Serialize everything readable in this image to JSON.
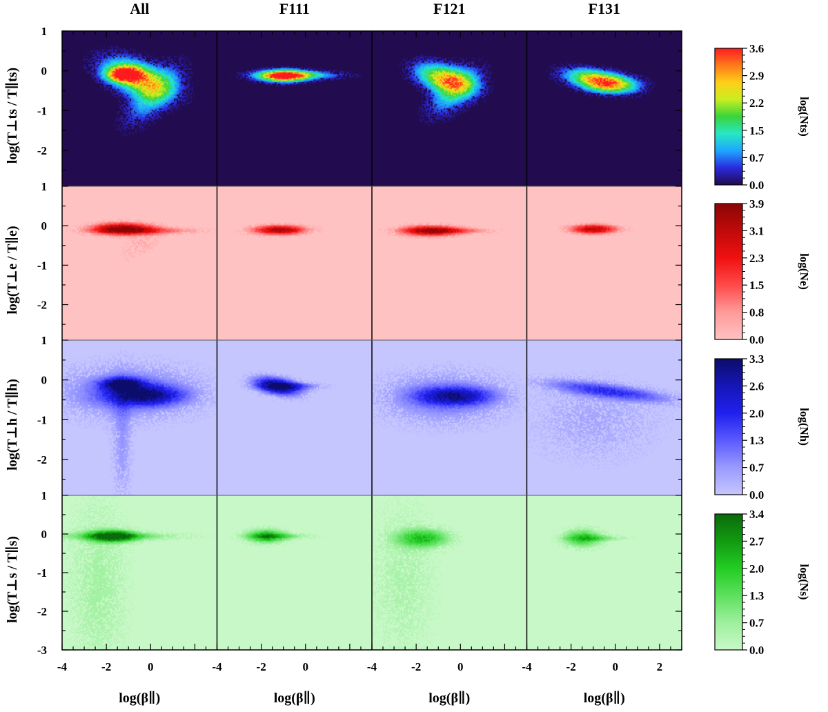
{
  "chart_data": {
    "type": "heatmap",
    "columns": [
      "All",
      "F111",
      "F121",
      "F131"
    ],
    "x_axis": {
      "label": "log(β∥)",
      "range": [
        -4,
        3
      ],
      "tick_labels": [
        [
          "-4",
          "-2",
          "0"
        ],
        [
          "-4",
          "-2",
          "0"
        ],
        [
          "-4",
          "-2",
          "0"
        ],
        [
          "-4",
          "-2",
          "0",
          "2"
        ]
      ]
    },
    "y_axis": {
      "range": [
        -3,
        1
      ]
    },
    "rows": [
      {
        "species": "ts",
        "ylabel": "log(T⊥ts / T∥ts)",
        "y_tick_labels": [
          "1",
          "0",
          "-1",
          "-2"
        ],
        "background": "#220b4e",
        "colorbar": {
          "label": "log(Nts)",
          "ticks": [
            "3.6",
            "2.9",
            "2.2",
            "1.5",
            "0.7",
            "0.0"
          ],
          "colors": [
            "#220b4e",
            "#2a2adf",
            "#1ea6ff",
            "#26e8c4",
            "#3ad43a",
            "#c8ee20",
            "#ffcf18",
            "#ff7a1a",
            "#ff1a20"
          ]
        },
        "panels": [
          {
            "blobs": [
              {
                "x": -0.6,
                "y": -0.18,
                "sx": 1.0,
                "sy": 0.28,
                "peak": 0.72,
                "rot": -10
              },
              {
                "x": -1.2,
                "y": -0.08,
                "sx": 0.5,
                "sy": 0.12,
                "peak": 1.0,
                "rot": 0
              },
              {
                "x": 0.1,
                "y": -0.6,
                "sx": 0.9,
                "sy": 0.32,
                "peak": 0.3,
                "rot": 25
              }
            ]
          },
          {
            "blobs": [
              {
                "x": -1.0,
                "y": -0.12,
                "sx": 0.7,
                "sy": 0.1,
                "peak": 1.0,
                "rot": 0
              },
              {
                "x": -0.4,
                "y": -0.1,
                "sx": 1.3,
                "sy": 0.07,
                "peak": 0.4,
                "rot": 0
              }
            ]
          },
          {
            "blobs": [
              {
                "x": -0.7,
                "y": -0.2,
                "sx": 0.85,
                "sy": 0.22,
                "peak": 0.75,
                "rot": -8
              },
              {
                "x": -0.3,
                "y": -0.5,
                "sx": 0.8,
                "sy": 0.3,
                "peak": 0.35,
                "rot": 20
              }
            ]
          },
          {
            "blobs": [
              {
                "x": -0.8,
                "y": -0.22,
                "sx": 0.95,
                "sy": 0.16,
                "peak": 0.75,
                "rot": -5
              },
              {
                "x": -0.2,
                "y": -0.35,
                "sx": 0.8,
                "sy": 0.14,
                "peak": 0.4,
                "rot": 0
              }
            ]
          }
        ]
      },
      {
        "species": "e",
        "ylabel": "log(T⊥e / T∥e)",
        "y_tick_labels": [
          "1",
          "0",
          "-1",
          "-2"
        ],
        "background": "#ffc2c2",
        "colorbar": {
          "label": "log(Ne)",
          "ticks": [
            "3.9",
            "3.1",
            "2.3",
            "1.5",
            "0.8",
            "0.0"
          ],
          "colors": [
            "#ffc2c2",
            "#ff9a9a",
            "#ff4a4a",
            "#f01010",
            "#c00a0a",
            "#8a0606"
          ]
        },
        "panels": [
          {
            "blobs": [
              {
                "x": -1.3,
                "y": -0.07,
                "sx": 0.9,
                "sy": 0.1,
                "peak": 1.0,
                "rot": 0
              },
              {
                "x": -0.2,
                "y": -0.12,
                "sx": 1.6,
                "sy": 0.06,
                "peak": 0.35,
                "rot": 0
              },
              {
                "x": -0.5,
                "y": -0.5,
                "sx": 0.6,
                "sy": 0.2,
                "peak": 0.12,
                "rot": 15
              }
            ]
          },
          {
            "blobs": [
              {
                "x": -1.2,
                "y": -0.1,
                "sx": 0.8,
                "sy": 0.08,
                "peak": 0.9,
                "rot": 0
              }
            ]
          },
          {
            "blobs": [
              {
                "x": -1.4,
                "y": -0.12,
                "sx": 0.9,
                "sy": 0.09,
                "peak": 0.85,
                "rot": 0
              },
              {
                "x": -0.4,
                "y": -0.12,
                "sx": 1.2,
                "sy": 0.05,
                "peak": 0.3,
                "rot": 0
              }
            ]
          },
          {
            "blobs": [
              {
                "x": -1.0,
                "y": -0.08,
                "sx": 0.7,
                "sy": 0.08,
                "peak": 0.85,
                "rot": 0
              }
            ]
          }
        ]
      },
      {
        "species": "h",
        "ylabel": "log(T⊥h / T∥h)",
        "y_tick_labels": [
          "1",
          "0",
          "-1",
          "-2"
        ],
        "background": "#c6c6ff",
        "colorbar": {
          "label": "log(Nh)",
          "ticks": [
            "3.3",
            "2.6",
            "2.0",
            "1.3",
            "0.7",
            "0.0"
          ],
          "colors": [
            "#c6c6ff",
            "#9a9aff",
            "#5a5aff",
            "#2020ee",
            "#1616b8",
            "#0c0c6a"
          ]
        },
        "panels": [
          {
            "blobs": [
              {
                "x": -1.3,
                "y": -0.1,
                "sx": 0.6,
                "sy": 0.1,
                "peak": 1.0,
                "rot": 0
              },
              {
                "x": -0.3,
                "y": -0.38,
                "sx": 1.1,
                "sy": 0.16,
                "peak": 0.8,
                "rot": 0
              },
              {
                "x": -1.0,
                "y": -0.3,
                "sx": 2.2,
                "sy": 0.45,
                "peak": 0.35,
                "rot": 0
              },
              {
                "x": -1.3,
                "y": -1.6,
                "sx": 0.3,
                "sy": 1.0,
                "peak": 0.2,
                "rot": 0
              }
            ]
          },
          {
            "blobs": [
              {
                "x": -1.3,
                "y": -0.15,
                "sx": 0.7,
                "sy": 0.14,
                "peak": 1.0,
                "rot": -5
              },
              {
                "x": -0.6,
                "y": -0.15,
                "sx": 0.9,
                "sy": 0.06,
                "peak": 0.35,
                "rot": 0
              }
            ]
          },
          {
            "blobs": [
              {
                "x": -0.3,
                "y": -0.4,
                "sx": 1.1,
                "sy": 0.15,
                "peak": 0.7,
                "rot": 0
              },
              {
                "x": -0.8,
                "y": -0.45,
                "sx": 2.0,
                "sy": 0.45,
                "peak": 0.3,
                "rot": 0
              }
            ]
          },
          {
            "blobs": [
              {
                "x": -0.3,
                "y": -0.28,
                "sx": 1.9,
                "sy": 0.12,
                "peak": 0.5,
                "rot": -4
              },
              {
                "x": -1.0,
                "y": -1.0,
                "sx": 2.0,
                "sy": 0.7,
                "peak": 0.15,
                "rot": 0
              }
            ]
          }
        ]
      },
      {
        "species": "s",
        "ylabel": "log(T⊥s / T∥s)",
        "y_tick_labels": [
          "1",
          "0",
          "-1",
          "-2",
          "-3"
        ],
        "background": "#c8f8c8",
        "colorbar": {
          "label": "log(Ns)",
          "ticks": [
            "3.4",
            "2.7",
            "2.0",
            "1.3",
            "0.7",
            "0.0"
          ],
          "colors": [
            "#c8f8c8",
            "#9ef09e",
            "#5ee05e",
            "#22cc22",
            "#129a12",
            "#0a6a0a"
          ]
        },
        "panels": [
          {
            "blobs": [
              {
                "x": -1.7,
                "y": -0.05,
                "sx": 0.7,
                "sy": 0.1,
                "peak": 1.0,
                "rot": 0
              },
              {
                "x": -1.5,
                "y": -0.05,
                "sx": 2.0,
                "sy": 0.07,
                "peak": 0.35,
                "rot": 0
              },
              {
                "x": -2.4,
                "y": -1.3,
                "sx": 0.9,
                "sy": 1.6,
                "peak": 0.18,
                "rot": 0
              }
            ]
          },
          {
            "blobs": [
              {
                "x": -1.8,
                "y": -0.05,
                "sx": 0.6,
                "sy": 0.12,
                "peak": 0.7,
                "rot": 0
              },
              {
                "x": -1.2,
                "y": -0.05,
                "sx": 1.0,
                "sy": 0.05,
                "peak": 0.3,
                "rot": 0
              }
            ]
          },
          {
            "blobs": [
              {
                "x": -1.7,
                "y": -0.1,
                "sx": 0.8,
                "sy": 0.16,
                "peak": 0.6,
                "rot": 0
              },
              {
                "x": -2.6,
                "y": -1.2,
                "sx": 1.0,
                "sy": 1.4,
                "peak": 0.15,
                "rot": 0
              }
            ]
          },
          {
            "blobs": [
              {
                "x": -1.5,
                "y": -0.1,
                "sx": 0.6,
                "sy": 0.16,
                "peak": 0.55,
                "rot": 0
              },
              {
                "x": -0.8,
                "y": -0.1,
                "sx": 0.9,
                "sy": 0.05,
                "peak": 0.25,
                "rot": 0
              }
            ]
          }
        ]
      }
    ]
  }
}
